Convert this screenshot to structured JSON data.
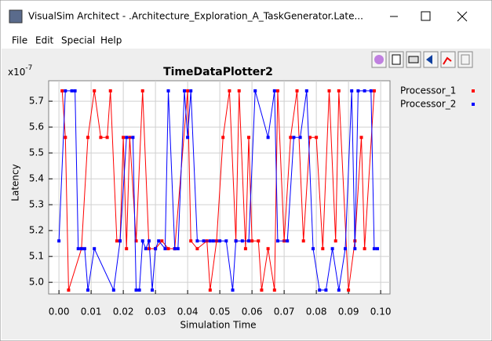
{
  "window": {
    "title": "VisualSim Architect - .Architecture_Exploration_A_TaskGenerator.Late...",
    "menu": [
      "File",
      "Edit",
      "Special",
      "Help"
    ]
  },
  "chart_data": {
    "type": "line",
    "title": "TimeDataPlotter2",
    "x_label": "Simulation Time",
    "y_label": "Latency",
    "y_multiplier": {
      "base": "x10",
      "exponent": "-7"
    },
    "xlim": [
      -0.0032,
      0.1029
    ],
    "ylim": [
      4.955,
      5.779
    ],
    "grid": true,
    "legend": "right",
    "xticks": [
      {
        "value": 0,
        "label": "0.00"
      },
      {
        "value": 0.01,
        "label": "0.01"
      },
      {
        "value": 0.02,
        "label": "0.02"
      },
      {
        "value": 0.03,
        "label": "0.03"
      },
      {
        "value": 0.04,
        "label": "0.04"
      },
      {
        "value": 0.05,
        "label": "0.05"
      },
      {
        "value": 0.06,
        "label": "0.06"
      },
      {
        "value": 0.07,
        "label": "0.07"
      },
      {
        "value": 0.08,
        "label": "0.08"
      },
      {
        "value": 0.09,
        "label": "0.09"
      },
      {
        "value": 0.1,
        "label": "0.10"
      }
    ],
    "yticks": [
      {
        "value": 5,
        "label": "5.0"
      },
      5.1,
      5.2,
      5.3,
      5.4,
      5.5,
      5.6,
      5.7
    ],
    "series": [
      {
        "name": "Processor_1",
        "color": "#ff0000",
        "x": [
          0.001,
          0.002,
          0.003,
          0.007,
          0.009,
          0.011,
          0.013,
          0.015,
          0.016,
          0.018,
          0.019,
          0.02,
          0.021,
          0.022,
          0.024,
          0.026,
          0.028,
          0.03,
          0.032,
          0.034,
          0.036,
          0.04,
          0.041,
          0.043,
          0.046,
          0.047,
          0.049,
          0.051,
          0.053,
          0.055,
          0.056,
          0.058,
          0.059,
          0.06,
          0.062,
          0.063,
          0.065,
          0.067,
          0.068,
          0.07,
          0.072,
          0.074,
          0.076,
          0.078,
          0.08,
          0.082,
          0.084,
          0.086,
          0.087,
          0.09,
          0.092,
          0.094,
          0.095,
          0.098
        ],
        "values": [
          5.74,
          5.56,
          4.97,
          5.13,
          5.56,
          5.74,
          5.56,
          5.56,
          5.74,
          5.16,
          5.16,
          5.56,
          5.13,
          5.56,
          5.16,
          5.74,
          5.13,
          5.13,
          5.16,
          5.13,
          5.13,
          5.74,
          5.16,
          5.13,
          5.16,
          4.97,
          5.16,
          5.56,
          5.74,
          5.16,
          5.74,
          5.13,
          5.56,
          5.16,
          5.16,
          4.97,
          5.13,
          4.97,
          5.74,
          5.16,
          5.56,
          5.74,
          5.16,
          5.56,
          5.56,
          5.13,
          5.74,
          5.16,
          5.74,
          4.97,
          5.16,
          5.56,
          5.13,
          5.74
        ]
      },
      {
        "name": "Processor_2",
        "color": "#0000ff",
        "x": [
          0.0,
          0.002,
          0.004,
          0.005,
          0.006,
          0.007,
          0.008,
          0.009,
          0.011,
          0.017,
          0.019,
          0.021,
          0.023,
          0.024,
          0.025,
          0.026,
          0.027,
          0.028,
          0.029,
          0.03,
          0.031,
          0.033,
          0.034,
          0.036,
          0.037,
          0.039,
          0.04,
          0.041,
          0.043,
          0.045,
          0.047,
          0.048,
          0.05,
          0.052,
          0.054,
          0.055,
          0.057,
          0.059,
          0.061,
          0.065,
          0.067,
          0.068,
          0.071,
          0.073,
          0.075,
          0.077,
          0.079,
          0.081,
          0.083,
          0.085,
          0.087,
          0.089,
          0.091,
          0.092,
          0.093,
          0.095,
          0.097,
          0.098,
          0.099
        ],
        "values": [
          5.16,
          5.74,
          5.74,
          5.74,
          5.13,
          5.13,
          5.13,
          4.97,
          5.13,
          4.97,
          5.16,
          5.56,
          5.56,
          4.97,
          4.97,
          5.16,
          5.13,
          5.16,
          4.97,
          5.13,
          5.16,
          5.13,
          5.74,
          5.13,
          5.13,
          5.74,
          5.56,
          5.74,
          5.16,
          5.16,
          5.16,
          5.16,
          5.16,
          5.16,
          4.97,
          5.16,
          5.16,
          5.16,
          5.74,
          5.56,
          5.74,
          5.16,
          5.16,
          5.56,
          5.56,
          5.74,
          5.13,
          4.97,
          4.97,
          5.13,
          4.97,
          5.13,
          5.74,
          5.13,
          5.74,
          5.74,
          5.74,
          5.13,
          5.13
        ]
      }
    ]
  }
}
